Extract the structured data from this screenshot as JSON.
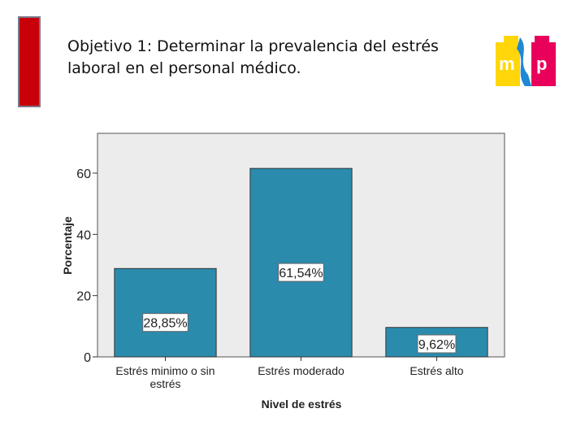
{
  "slide": {
    "title_line1": "Objetivo 1: Determinar la prevalencia del estrés",
    "title_line2": "laboral en el personal médico.",
    "logo_text": "msp"
  },
  "colors": {
    "accent_red": "#c8000a",
    "bar": "#2a8bad",
    "plot_bg": "#ececec"
  },
  "chart_data": {
    "type": "bar",
    "title": "",
    "categories": [
      [
        "Estrés minimo o sin",
        "estrés"
      ],
      [
        "Estrés moderado"
      ],
      [
        "Estrés alto"
      ]
    ],
    "values": [
      28.85,
      61.54,
      9.62
    ],
    "data_labels": [
      "28,85%",
      "61,54%",
      "9,62%"
    ],
    "xlabel": "Nivel de estrés",
    "ylabel": "Porcentaje",
    "yticks": [
      0,
      20,
      40,
      60
    ],
    "ylim": [
      0,
      73
    ],
    "grid": false,
    "legend": "none"
  }
}
